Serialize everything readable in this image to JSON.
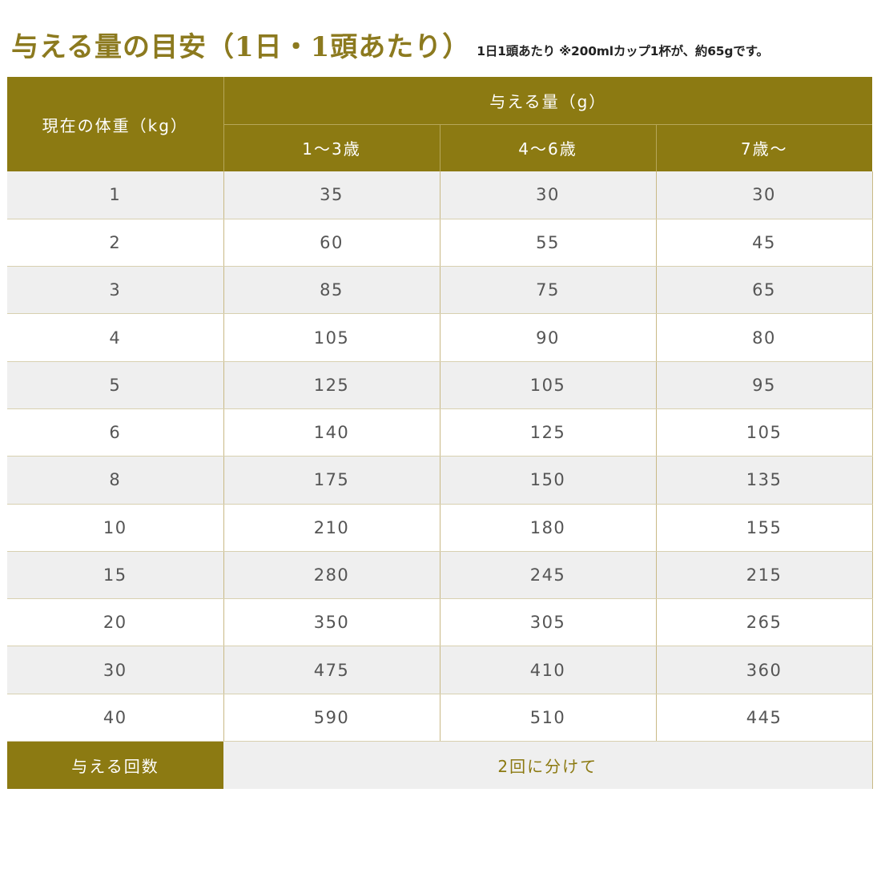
{
  "title": {
    "main": "与える量の目安（1日・1頭あたり）",
    "note": "1日1頭あたり ※200mlカップ1杯が、約65gです。"
  },
  "table": {
    "weight_header": "現在の体重（kg）",
    "amount_header": "与える量（g）",
    "age_headers": [
      "1～3歳",
      "4～6歳",
      "7歳～"
    ],
    "rows": [
      {
        "weight": "1",
        "a": "35",
        "b": "30",
        "c": "30"
      },
      {
        "weight": "2",
        "a": "60",
        "b": "55",
        "c": "45"
      },
      {
        "weight": "3",
        "a": "85",
        "b": "75",
        "c": "65"
      },
      {
        "weight": "4",
        "a": "105",
        "b": "90",
        "c": "80"
      },
      {
        "weight": "5",
        "a": "125",
        "b": "105",
        "c": "95"
      },
      {
        "weight": "6",
        "a": "140",
        "b": "125",
        "c": "105"
      },
      {
        "weight": "8",
        "a": "175",
        "b": "150",
        "c": "135"
      },
      {
        "weight": "10",
        "a": "210",
        "b": "180",
        "c": "155"
      },
      {
        "weight": "15",
        "a": "280",
        "b": "245",
        "c": "215"
      },
      {
        "weight": "20",
        "a": "350",
        "b": "305",
        "c": "265"
      },
      {
        "weight": "30",
        "a": "475",
        "b": "410",
        "c": "360"
      },
      {
        "weight": "40",
        "a": "590",
        "b": "510",
        "c": "445"
      }
    ],
    "frequency_label": "与える回数",
    "frequency_value": "2回に分けて"
  },
  "colors": {
    "accent": "#8c7a12",
    "title": "#8c7a1f",
    "row_shade": "#efefef"
  }
}
